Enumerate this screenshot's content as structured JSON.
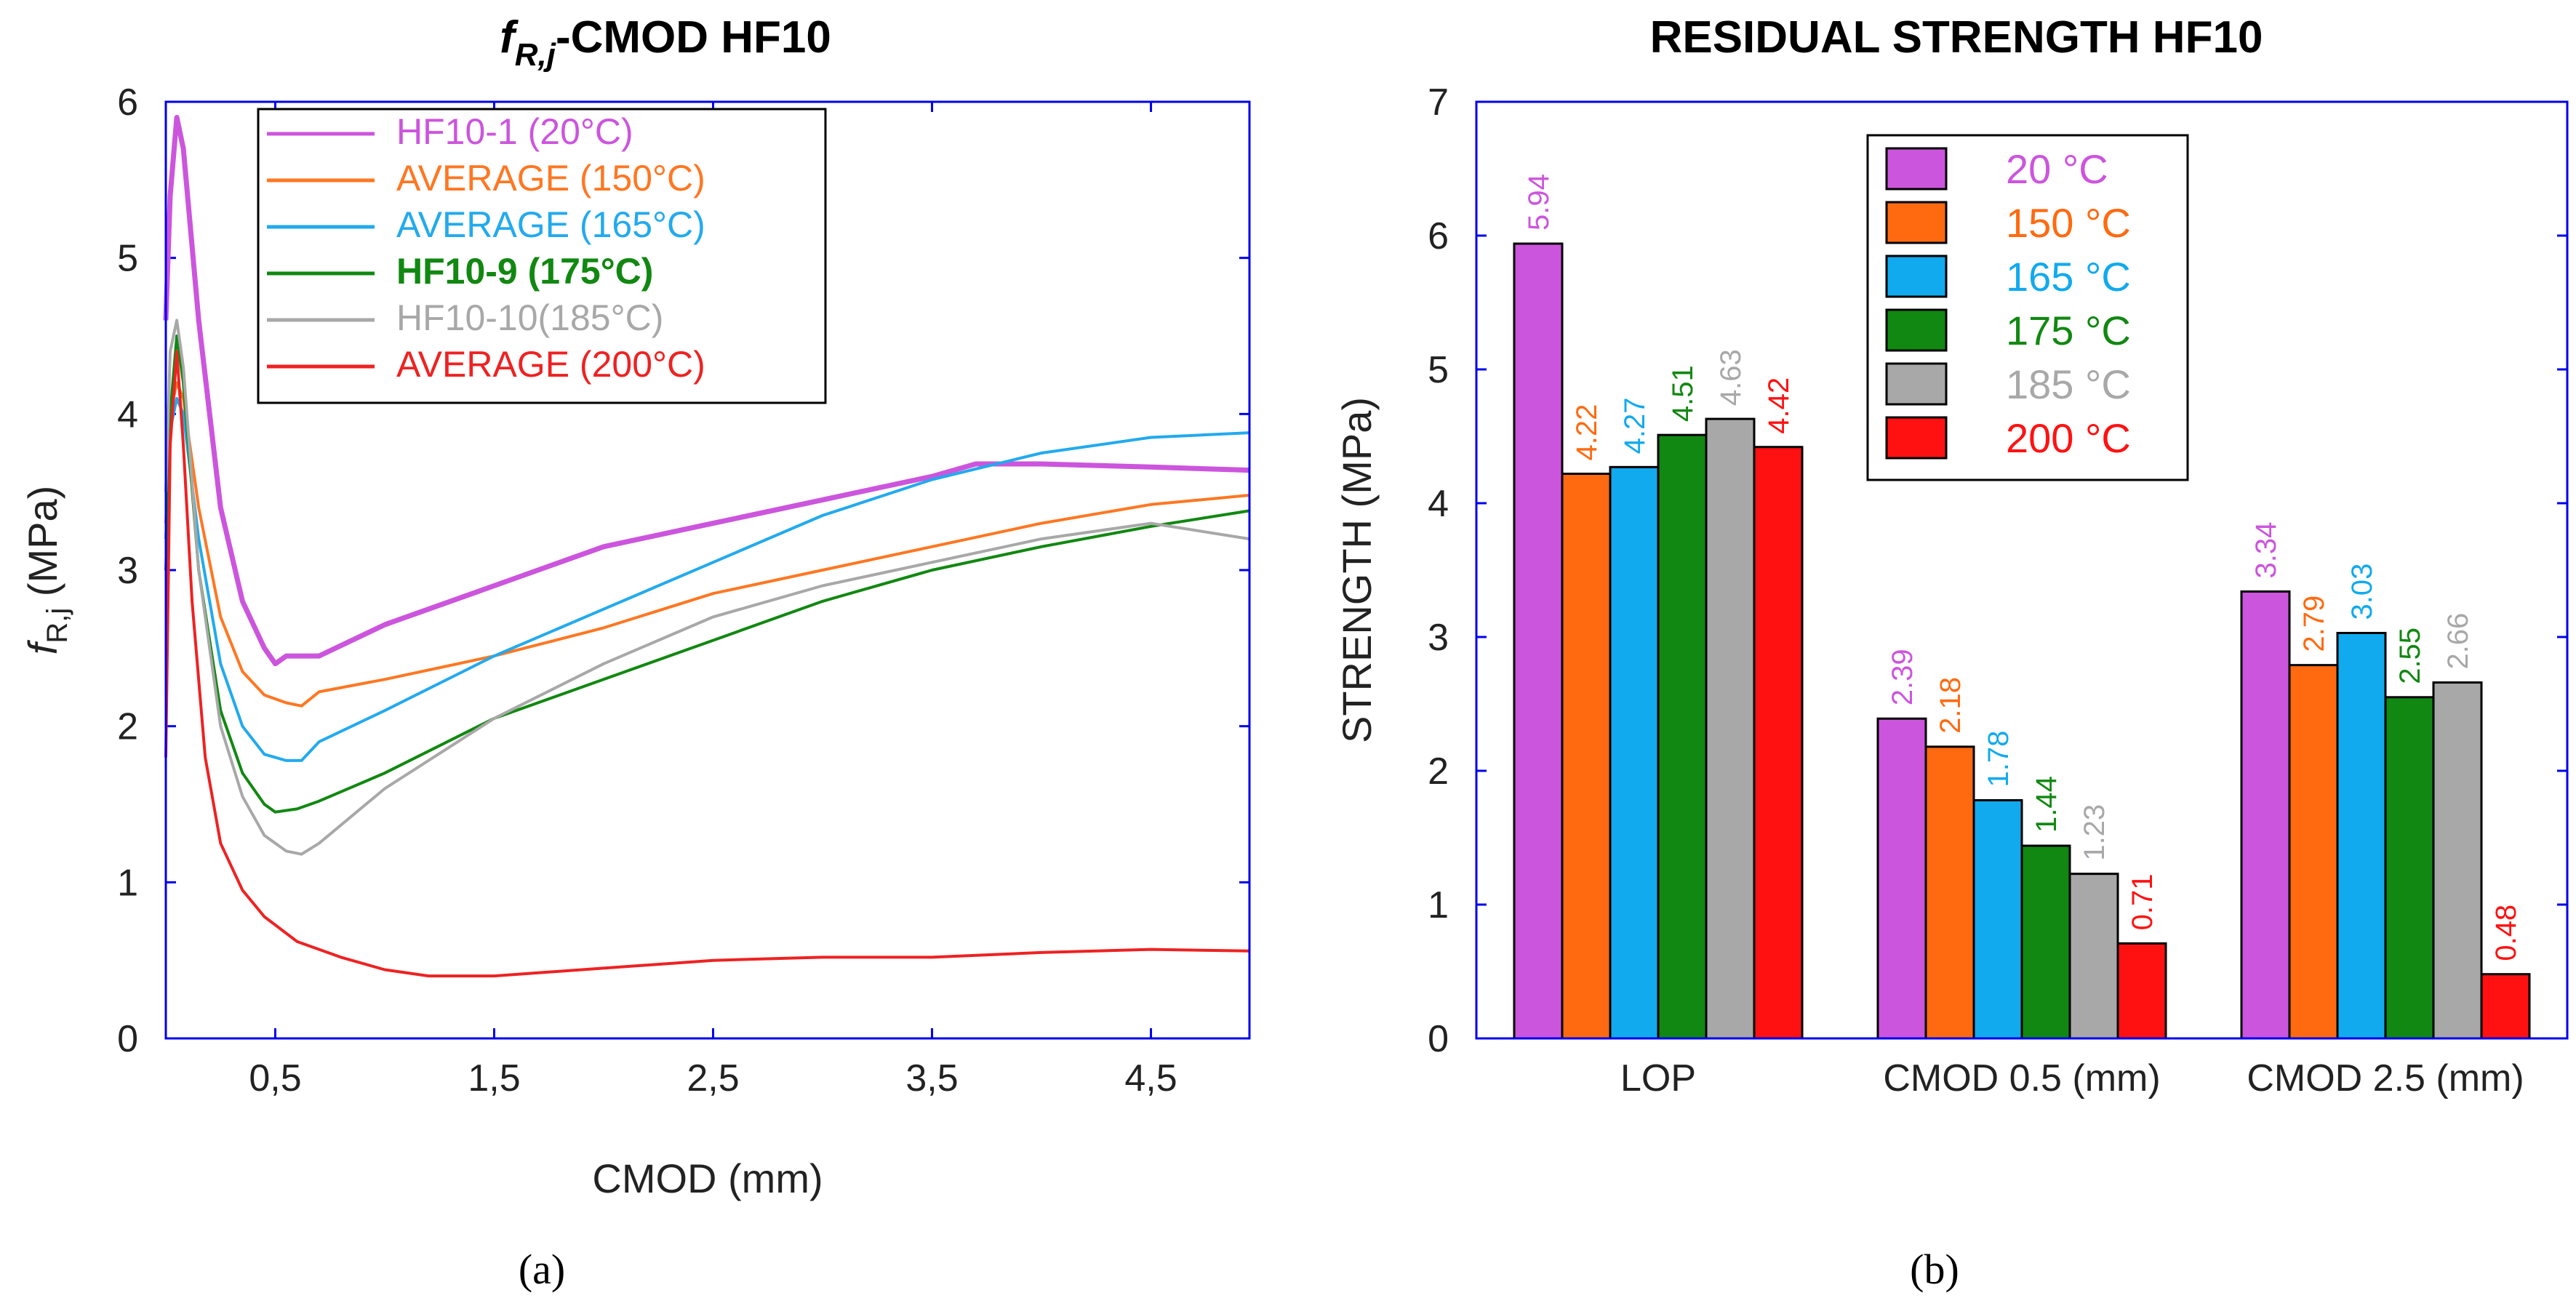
{
  "chart_data": [
    {
      "type": "line",
      "title": "-CMOD HF10",
      "title_symbol": "f",
      "title_symbol_sub": "R,j",
      "xlabel": "CMOD (mm)",
      "ylabel_symbol": "f",
      "ylabel_sub": "R,j",
      "ylabel_unit": " (MPa)",
      "xlim": [
        0,
        4.95
      ],
      "ylim": [
        0,
        6
      ],
      "x_ticks": [
        0.5,
        1.5,
        2.5,
        3.5,
        4.5
      ],
      "x_tick_labels": [
        "0,5",
        "1,5",
        "2,5",
        "3,5",
        "4,5"
      ],
      "y_ticks": [
        0,
        1,
        2,
        3,
        4,
        5,
        6
      ],
      "y_tick_labels": [
        "0",
        "1",
        "2",
        "3",
        "4",
        "5",
        "6"
      ],
      "legend_position": "top-center",
      "series": [
        {
          "name": "HF10-1 (20°C)",
          "color": "#cc55dd",
          "x": [
            0,
            0.02,
            0.05,
            0.08,
            0.15,
            0.25,
            0.35,
            0.45,
            0.5,
            0.55,
            0.7,
            1.0,
            1.5,
            2.0,
            2.5,
            3.0,
            3.5,
            3.7,
            4.0,
            4.5,
            4.95
          ],
          "y": [
            4.6,
            5.4,
            5.9,
            5.7,
            4.6,
            3.4,
            2.8,
            2.5,
            2.4,
            2.45,
            2.45,
            2.65,
            2.9,
            3.15,
            3.3,
            3.45,
            3.6,
            3.68,
            3.68,
            3.66,
            3.64
          ]
        },
        {
          "name": "AVERAGE (150°C)",
          "color": "#ff7722",
          "x": [
            0,
            0.02,
            0.05,
            0.08,
            0.15,
            0.25,
            0.35,
            0.45,
            0.55,
            0.62,
            0.7,
            1.0,
            1.5,
            2.0,
            2.5,
            3.0,
            3.5,
            4.0,
            4.5,
            4.95
          ],
          "y": [
            3.3,
            4.0,
            4.2,
            4.1,
            3.4,
            2.7,
            2.35,
            2.2,
            2.15,
            2.13,
            2.22,
            2.3,
            2.45,
            2.63,
            2.85,
            3.0,
            3.15,
            3.3,
            3.42,
            3.48
          ]
        },
        {
          "name": "AVERAGE (165°C)",
          "color": "#22aaee",
          "x": [
            0,
            0.02,
            0.05,
            0.08,
            0.15,
            0.25,
            0.35,
            0.45,
            0.55,
            0.62,
            0.7,
            1.0,
            1.5,
            2.0,
            2.5,
            3.0,
            3.5,
            4.0,
            4.5,
            4.95
          ],
          "y": [
            3.2,
            3.9,
            4.1,
            4.0,
            3.2,
            2.4,
            2.0,
            1.82,
            1.78,
            1.78,
            1.9,
            2.1,
            2.45,
            2.75,
            3.05,
            3.35,
            3.58,
            3.75,
            3.85,
            3.88
          ]
        },
        {
          "name": "HF10-9 (175°C)",
          "color": "#118811",
          "x": [
            0,
            0.02,
            0.05,
            0.08,
            0.15,
            0.25,
            0.35,
            0.45,
            0.5,
            0.6,
            0.7,
            1.0,
            1.5,
            2.0,
            2.5,
            3.0,
            3.5,
            4.0,
            4.5,
            4.95
          ],
          "y": [
            3.0,
            4.0,
            4.5,
            4.2,
            3.0,
            2.1,
            1.7,
            1.5,
            1.45,
            1.47,
            1.52,
            1.7,
            2.05,
            2.3,
            2.55,
            2.8,
            3.0,
            3.15,
            3.28,
            3.38
          ]
        },
        {
          "name": "HF10-10(185°C)",
          "color": "#a8a8a8",
          "x": [
            0,
            0.02,
            0.05,
            0.08,
            0.15,
            0.25,
            0.35,
            0.45,
            0.55,
            0.62,
            0.7,
            1.0,
            1.5,
            2.0,
            2.5,
            3.0,
            3.5,
            4.0,
            4.5,
            4.95
          ],
          "y": [
            3.5,
            4.4,
            4.6,
            4.3,
            3.0,
            2.0,
            1.55,
            1.3,
            1.2,
            1.18,
            1.25,
            1.6,
            2.05,
            2.4,
            2.7,
            2.9,
            3.05,
            3.2,
            3.3,
            3.2
          ]
        },
        {
          "name": "AVERAGE (200°C)",
          "color": "#ee2222",
          "x": [
            0,
            0.02,
            0.05,
            0.08,
            0.12,
            0.18,
            0.25,
            0.35,
            0.45,
            0.6,
            0.8,
            1.0,
            1.2,
            1.5,
            2.0,
            2.5,
            3.0,
            3.5,
            4.0,
            4.5,
            4.95
          ],
          "y": [
            1.8,
            3.8,
            4.4,
            3.8,
            2.8,
            1.8,
            1.25,
            0.95,
            0.78,
            0.62,
            0.52,
            0.44,
            0.4,
            0.4,
            0.45,
            0.5,
            0.52,
            0.52,
            0.55,
            0.57,
            0.56
          ]
        }
      ]
    },
    {
      "type": "bar",
      "title": "RESIDUAL STRENGTH HF10",
      "ylabel": "STRENGTH (MPa)",
      "xlabel": "",
      "ylim": [
        0,
        7
      ],
      "y_ticks": [
        0,
        1,
        2,
        3,
        4,
        5,
        6,
        7
      ],
      "y_tick_labels": [
        "0",
        "1",
        "2",
        "3",
        "4",
        "5",
        "6",
        "7"
      ],
      "categories": [
        "LOP",
        "CMOD 0.5 (mm)",
        "CMOD 2.5 (mm)"
      ],
      "legend_position": "top-center",
      "series": [
        {
          "name": "20 °C",
          "color": "#cc55dd",
          "values": [
            5.94,
            2.39,
            3.34
          ],
          "labels": [
            "5.94",
            "2.39",
            "3.34"
          ]
        },
        {
          "name": "150 °C",
          "color": "#ff6a10",
          "values": [
            4.22,
            2.18,
            2.79
          ],
          "labels": [
            "4.22",
            "2.18",
            "2.79"
          ]
        },
        {
          "name": "165 °C",
          "color": "#11aaee",
          "values": [
            4.27,
            1.78,
            3.03
          ],
          "labels": [
            "4.27",
            "1.78",
            "3.03"
          ]
        },
        {
          "name": "175 °C",
          "color": "#118811",
          "values": [
            4.51,
            1.44,
            2.55
          ],
          "labels": [
            "4.51",
            "1.44",
            "2.55"
          ]
        },
        {
          "name": "185 °C",
          "color": "#a8a8a8",
          "values": [
            4.63,
            1.23,
            2.66
          ],
          "labels": [
            "4.63",
            "1.23",
            "2.66"
          ]
        },
        {
          "name": "200 °C",
          "color": "#ff1111",
          "values": [
            4.42,
            0.71,
            0.48
          ],
          "labels": [
            "4.42",
            "0.71",
            "0.48"
          ]
        }
      ]
    }
  ],
  "captions": {
    "a": "(a)",
    "b": "(b)"
  }
}
